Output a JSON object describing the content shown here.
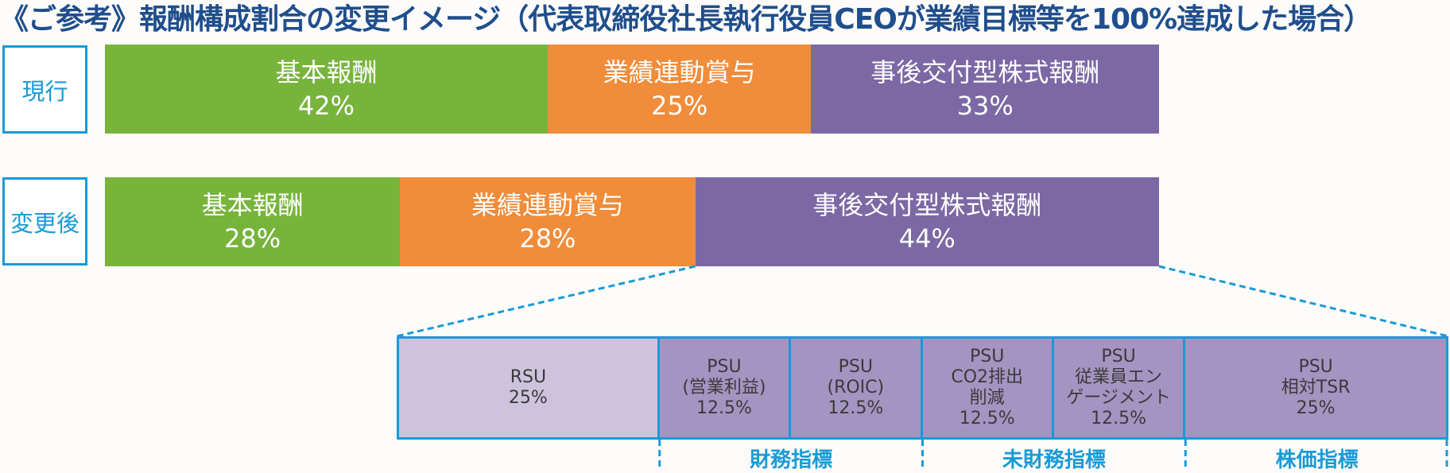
{
  "title": "《ご参考》報酬構成割合の変更イメージ（代表取締役社長執行役員CEOが業績目標等を100%達成した場合）",
  "colors": {
    "basic": "#78b43c",
    "performance": "#f08c3a",
    "stock": "#7b68a4",
    "rsu": "#cec3dd",
    "psu": "#a494c2",
    "border": "#1a9ad6"
  },
  "chart_data": {
    "type": "bar",
    "orientation": "horizontal-stacked",
    "rows": [
      {
        "label": "現行",
        "segments": [
          {
            "name": "基本報酬",
            "value": 42,
            "label": "42%"
          },
          {
            "name": "業績連動賞与",
            "value": 25,
            "label": "25%"
          },
          {
            "name": "事後交付型株式報酬",
            "value": 33,
            "label": "33%"
          }
        ]
      },
      {
        "label": "変更後",
        "segments": [
          {
            "name": "基本報酬",
            "value": 28,
            "label": "28%"
          },
          {
            "name": "業績連動賞与",
            "value": 28,
            "label": "28%"
          },
          {
            "name": "事後交付型株式報酬",
            "value": 44,
            "label": "44%"
          }
        ]
      }
    ],
    "breakdown": {
      "of": "事後交付型株式報酬",
      "items": [
        {
          "lines": [
            "RSU"
          ],
          "value": 25,
          "label": "25%",
          "kind": "rsu"
        },
        {
          "lines": [
            "PSU",
            "(営業利益)"
          ],
          "value": 12.5,
          "label": "12.5%",
          "kind": "psu"
        },
        {
          "lines": [
            "PSU",
            "(ROIC)"
          ],
          "value": 12.5,
          "label": "12.5%",
          "kind": "psu"
        },
        {
          "lines": [
            "PSU",
            "CO2排出",
            "削減"
          ],
          "value": 12.5,
          "label": "12.5%",
          "kind": "psu"
        },
        {
          "lines": [
            "PSU",
            "従業員エン",
            "ゲージメント"
          ],
          "value": 12.5,
          "label": "12.5%",
          "kind": "psu"
        },
        {
          "lines": [
            "PSU",
            "相対TSR"
          ],
          "value": 25,
          "label": "25%",
          "kind": "psu"
        }
      ],
      "groups": [
        {
          "label": "財務指標",
          "from": 1,
          "to": 2
        },
        {
          "label": "未財務指標",
          "from": 3,
          "to": 4
        },
        {
          "label": "株価指標",
          "from": 5,
          "to": 5
        }
      ]
    }
  }
}
